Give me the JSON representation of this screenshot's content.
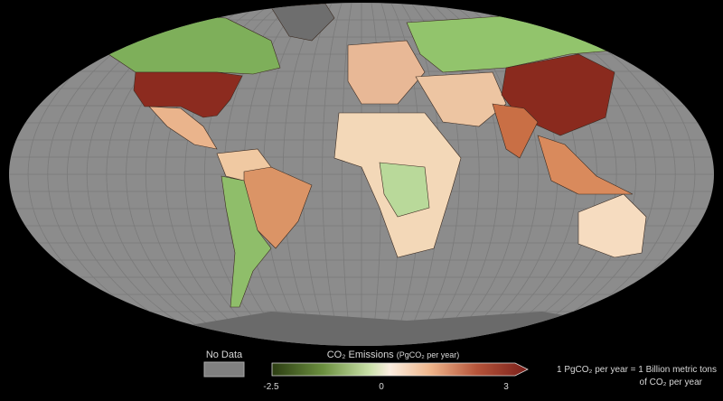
{
  "legend": {
    "no_data_label": "No Data",
    "colorbar_title": "CO₂ Emissions",
    "colorbar_units": "(PgCO₂ per year)",
    "ticks": [
      "-2.5",
      "0",
      "3"
    ],
    "range": [
      -2.5,
      3
    ],
    "note_line1": "1 PgCO₂ per year = 1 Billion metric tons",
    "note_line2": "of CO₂ per year",
    "colors": {
      "min": "#2c3d12",
      "mid": "#fbeee0",
      "max": "#7a1f1a",
      "no_data": "#808080"
    }
  },
  "map": {
    "ocean_color": "#8c8c8c",
    "regions": [
      {
        "name": "United States",
        "color": "#8c2b1f"
      },
      {
        "name": "Canada",
        "color": "#7eaf5a"
      },
      {
        "name": "Russia",
        "color": "#92c46c"
      },
      {
        "name": "China",
        "color": "#8a2a1e"
      },
      {
        "name": "India",
        "color": "#c96f45"
      },
      {
        "name": "Brazil",
        "color": "#db9466"
      },
      {
        "name": "Africa",
        "color": "#f3d8b8"
      },
      {
        "name": "Central Africa",
        "color": "#b9d99a"
      },
      {
        "name": "Australia",
        "color": "#f6dcc0"
      },
      {
        "name": "Europe",
        "color": "#e8b896"
      },
      {
        "name": "Middle East",
        "color": "#edc5a2"
      },
      {
        "name": "Southeast Asia",
        "color": "#d98a5c"
      },
      {
        "name": "Mexico",
        "color": "#eab48c"
      },
      {
        "name": "South America South",
        "color": "#8fbe6a"
      },
      {
        "name": "Greenland",
        "color": "#6e6e6e"
      },
      {
        "name": "Antarctica",
        "color": "#6a6a6a"
      }
    ]
  }
}
